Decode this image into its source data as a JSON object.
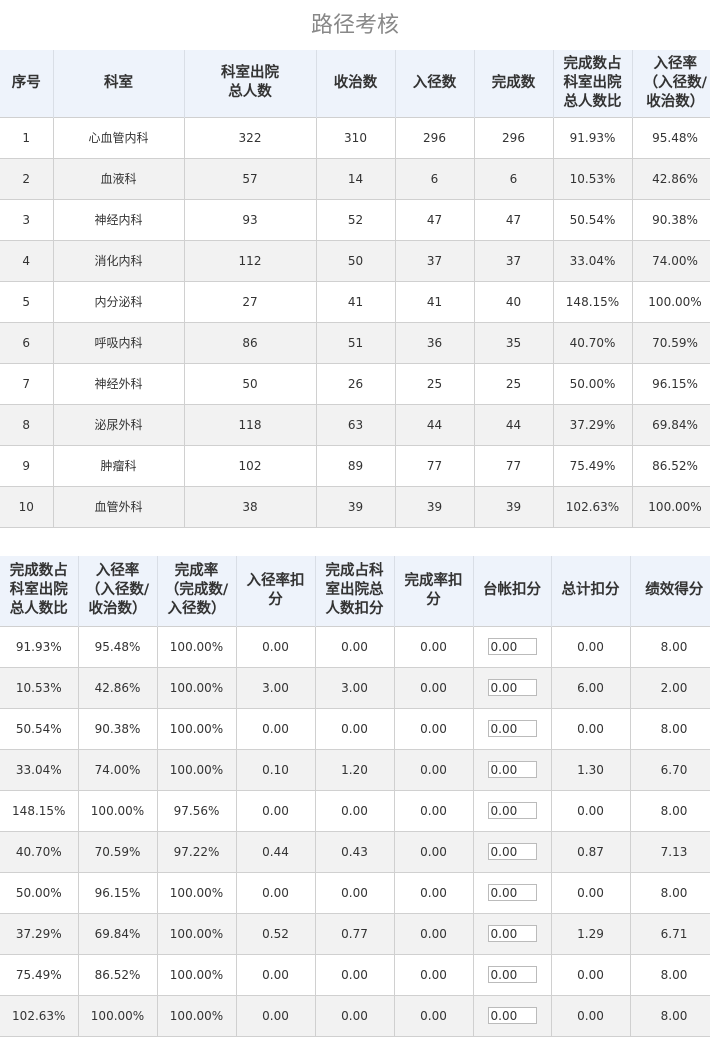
{
  "page": {
    "title": "路径考核"
  },
  "table1": {
    "headers": [
      [
        "序号"
      ],
      [
        "科室"
      ],
      [
        "科室出院",
        "总人数"
      ],
      [
        "收治数"
      ],
      [
        "入径数"
      ],
      [
        "完成数"
      ],
      [
        "完成数占",
        "科室出院",
        "总人数比"
      ],
      [
        "入径率",
        "（入径数/",
        "收治数）"
      ]
    ],
    "rows": [
      [
        "1",
        "心血管内科",
        "322",
        "310",
        "296",
        "296",
        "91.93%",
        "95.48%"
      ],
      [
        "2",
        "血液科",
        "57",
        "14",
        "6",
        "6",
        "10.53%",
        "42.86%"
      ],
      [
        "3",
        "神经内科",
        "93",
        "52",
        "47",
        "47",
        "50.54%",
        "90.38%"
      ],
      [
        "4",
        "消化内科",
        "112",
        "50",
        "37",
        "37",
        "33.04%",
        "74.00%"
      ],
      [
        "5",
        "内分泌科",
        "27",
        "41",
        "41",
        "40",
        "148.15%",
        "100.00%"
      ],
      [
        "6",
        "呼吸内科",
        "86",
        "51",
        "36",
        "35",
        "40.70%",
        "70.59%"
      ],
      [
        "7",
        "神经外科",
        "50",
        "26",
        "25",
        "25",
        "50.00%",
        "96.15%"
      ],
      [
        "8",
        "泌尿外科",
        "118",
        "63",
        "44",
        "44",
        "37.29%",
        "69.84%"
      ],
      [
        "9",
        "肿瘤科",
        "102",
        "89",
        "77",
        "77",
        "75.49%",
        "86.52%"
      ],
      [
        "10",
        "血管外科",
        "38",
        "39",
        "39",
        "39",
        "102.63%",
        "100.00%"
      ]
    ]
  },
  "table2": {
    "headers": [
      [
        "完成数占",
        "科室出院",
        "总人数比"
      ],
      [
        "入径率",
        "（入径数/",
        "收治数）"
      ],
      [
        "完成率",
        "（完成数/",
        "入径数）"
      ],
      [
        "入径率扣",
        "分"
      ],
      [
        "完成占科",
        "室出院总",
        "人数扣分"
      ],
      [
        "完成率扣",
        "分"
      ],
      [
        "台帐扣分"
      ],
      [
        "总计扣分"
      ],
      [
        "绩效得分"
      ]
    ],
    "rows": [
      [
        "91.93%",
        "95.48%",
        "100.00%",
        "0.00",
        "0.00",
        "0.00",
        "0.00",
        "0.00",
        "8.00"
      ],
      [
        "10.53%",
        "42.86%",
        "100.00%",
        "3.00",
        "3.00",
        "0.00",
        "0.00",
        "6.00",
        "2.00"
      ],
      [
        "50.54%",
        "90.38%",
        "100.00%",
        "0.00",
        "0.00",
        "0.00",
        "0.00",
        "0.00",
        "8.00"
      ],
      [
        "33.04%",
        "74.00%",
        "100.00%",
        "0.10",
        "1.20",
        "0.00",
        "0.00",
        "1.30",
        "6.70"
      ],
      [
        "148.15%",
        "100.00%",
        "97.56%",
        "0.00",
        "0.00",
        "0.00",
        "0.00",
        "0.00",
        "8.00"
      ],
      [
        "40.70%",
        "70.59%",
        "97.22%",
        "0.44",
        "0.43",
        "0.00",
        "0.00",
        "0.87",
        "7.13"
      ],
      [
        "50.00%",
        "96.15%",
        "100.00%",
        "0.00",
        "0.00",
        "0.00",
        "0.00",
        "0.00",
        "8.00"
      ],
      [
        "37.29%",
        "69.84%",
        "100.00%",
        "0.52",
        "0.77",
        "0.00",
        "0.00",
        "1.29",
        "6.71"
      ],
      [
        "75.49%",
        "86.52%",
        "100.00%",
        "0.00",
        "0.00",
        "0.00",
        "0.00",
        "0.00",
        "8.00"
      ],
      [
        "102.63%",
        "100.00%",
        "100.00%",
        "0.00",
        "0.00",
        "0.00",
        "0.00",
        "0.00",
        "8.00"
      ]
    ]
  }
}
